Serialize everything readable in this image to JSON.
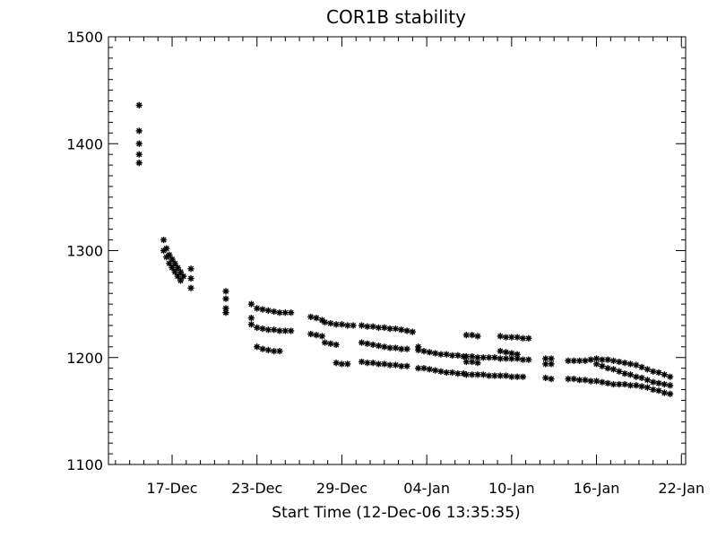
{
  "chart_data": {
    "type": "scatter",
    "title": "COR1B stability",
    "xlabel": "Start Time (12-Dec-06 13:35:35)",
    "ylabel": "",
    "x_unit": "day-of-Dec-2006 (Jan dates = day + 31)",
    "xlim": [
      12.5,
      53.3
    ],
    "ylim": [
      1100,
      1500
    ],
    "x_ticks": [
      {
        "value": 17,
        "label": "17-Dec"
      },
      {
        "value": 23,
        "label": "23-Dec"
      },
      {
        "value": 29,
        "label": "29-Dec"
      },
      {
        "value": 35,
        "label": "04-Jan"
      },
      {
        "value": 41,
        "label": "10-Jan"
      },
      {
        "value": 47,
        "label": "16-Jan"
      },
      {
        "value": 53,
        "label": "22-Jan"
      }
    ],
    "y_ticks": [
      {
        "value": 1100,
        "label": "1100"
      },
      {
        "value": 1200,
        "label": "1200"
      },
      {
        "value": 1300,
        "label": "1300"
      },
      {
        "value": 1400,
        "label": "1400"
      },
      {
        "value": 1500,
        "label": "1500"
      }
    ],
    "grid": false,
    "legend": "none",
    "marker": "asterisk",
    "color": "#000000",
    "series": [
      {
        "points": [
          [
            14.67,
            1436
          ],
          [
            14.67,
            1412
          ],
          [
            14.67,
            1400
          ],
          [
            14.67,
            1390
          ],
          [
            14.67,
            1382
          ],
          [
            16.4,
            1310
          ],
          [
            16.6,
            1302
          ],
          [
            16.8,
            1296
          ],
          [
            17.0,
            1292
          ],
          [
            17.2,
            1288
          ],
          [
            17.4,
            1284
          ],
          [
            17.6,
            1280
          ],
          [
            17.8,
            1276
          ],
          [
            16.4,
            1300
          ],
          [
            16.6,
            1294
          ],
          [
            16.8,
            1288
          ],
          [
            17.0,
            1284
          ],
          [
            17.2,
            1280
          ],
          [
            17.4,
            1276
          ],
          [
            17.6,
            1272
          ],
          [
            18.33,
            1283
          ],
          [
            18.33,
            1274
          ],
          [
            18.33,
            1265
          ],
          [
            20.8,
            1262
          ],
          [
            20.8,
            1255
          ],
          [
            20.8,
            1246
          ],
          [
            20.8,
            1242
          ],
          [
            22.6,
            1250
          ],
          [
            22.6,
            1237
          ],
          [
            22.6,
            1231
          ],
          [
            23.0,
            1246
          ],
          [
            23.4,
            1245
          ],
          [
            23.8,
            1244
          ],
          [
            24.2,
            1243
          ],
          [
            24.6,
            1242
          ],
          [
            25.0,
            1242
          ],
          [
            25.4,
            1242
          ],
          [
            23.0,
            1228
          ],
          [
            23.4,
            1227
          ],
          [
            23.8,
            1226
          ],
          [
            24.2,
            1226
          ],
          [
            24.6,
            1225
          ],
          [
            25.0,
            1225
          ],
          [
            25.4,
            1225
          ],
          [
            23.0,
            1210
          ],
          [
            23.4,
            1208
          ],
          [
            23.8,
            1207
          ],
          [
            24.2,
            1206
          ],
          [
            24.6,
            1206
          ],
          [
            26.8,
            1238
          ],
          [
            27.2,
            1237
          ],
          [
            27.6,
            1235
          ],
          [
            26.8,
            1222
          ],
          [
            27.2,
            1221
          ],
          [
            27.6,
            1220
          ],
          [
            27.8,
            1233
          ],
          [
            28.2,
            1232
          ],
          [
            28.6,
            1231
          ],
          [
            29.0,
            1231
          ],
          [
            29.4,
            1230
          ],
          [
            29.8,
            1230
          ],
          [
            27.8,
            1214
          ],
          [
            28.2,
            1213
          ],
          [
            28.6,
            1212
          ],
          [
            28.6,
            1195
          ],
          [
            29.0,
            1194
          ],
          [
            29.4,
            1194
          ],
          [
            30.4,
            1230
          ],
          [
            30.8,
            1229
          ],
          [
            31.2,
            1229
          ],
          [
            31.6,
            1228
          ],
          [
            32.0,
            1228
          ],
          [
            32.4,
            1227
          ],
          [
            32.8,
            1227
          ],
          [
            33.2,
            1226
          ],
          [
            33.6,
            1225
          ],
          [
            30.4,
            1214
          ],
          [
            30.8,
            1213
          ],
          [
            31.2,
            1212
          ],
          [
            31.6,
            1211
          ],
          [
            32.0,
            1210
          ],
          [
            32.4,
            1209
          ],
          [
            32.8,
            1209
          ],
          [
            33.2,
            1208
          ],
          [
            33.6,
            1208
          ],
          [
            30.4,
            1196
          ],
          [
            30.8,
            1195
          ],
          [
            31.2,
            1195
          ],
          [
            31.6,
            1194
          ],
          [
            32.0,
            1194
          ],
          [
            32.4,
            1193
          ],
          [
            32.8,
            1193
          ],
          [
            33.2,
            1192
          ],
          [
            33.6,
            1192
          ],
          [
            34.0,
            1224
          ],
          [
            34.4,
            1210
          ],
          [
            34.4,
            1207
          ],
          [
            34.8,
            1206
          ],
          [
            35.2,
            1205
          ],
          [
            35.6,
            1204
          ],
          [
            36.0,
            1203
          ],
          [
            36.4,
            1203
          ],
          [
            36.8,
            1202
          ],
          [
            37.2,
            1202
          ],
          [
            37.6,
            1201
          ],
          [
            34.4,
            1190
          ],
          [
            34.8,
            1190
          ],
          [
            35.2,
            1189
          ],
          [
            35.6,
            1188
          ],
          [
            36.0,
            1187
          ],
          [
            36.4,
            1186
          ],
          [
            36.8,
            1186
          ],
          [
            37.2,
            1185
          ],
          [
            37.6,
            1185
          ],
          [
            37.8,
            1221
          ],
          [
            38.2,
            1221
          ],
          [
            38.6,
            1220
          ],
          [
            37.8,
            1201
          ],
          [
            38.2,
            1201
          ],
          [
            38.6,
            1200
          ],
          [
            39.0,
            1200
          ],
          [
            39.4,
            1200
          ],
          [
            39.8,
            1200
          ],
          [
            40.2,
            1199
          ],
          [
            40.6,
            1199
          ],
          [
            41.0,
            1199
          ],
          [
            41.4,
            1199
          ],
          [
            41.8,
            1198
          ],
          [
            42.2,
            1198
          ],
          [
            37.8,
            1184
          ],
          [
            38.2,
            1184
          ],
          [
            38.6,
            1184
          ],
          [
            39.0,
            1184
          ],
          [
            39.4,
            1183
          ],
          [
            39.8,
            1183
          ],
          [
            40.2,
            1183
          ],
          [
            40.6,
            1183
          ],
          [
            41.0,
            1182
          ],
          [
            41.4,
            1182
          ],
          [
            41.8,
            1182
          ],
          [
            37.8,
            1196
          ],
          [
            38.2,
            1196
          ],
          [
            38.6,
            1195
          ],
          [
            40.2,
            1220
          ],
          [
            40.6,
            1219
          ],
          [
            41.0,
            1219
          ],
          [
            41.4,
            1219
          ],
          [
            41.8,
            1218
          ],
          [
            42.2,
            1218
          ],
          [
            40.2,
            1206
          ],
          [
            40.6,
            1205
          ],
          [
            41.0,
            1204
          ],
          [
            41.4,
            1203
          ],
          [
            43.4,
            1199
          ],
          [
            43.8,
            1199
          ],
          [
            43.4,
            1194
          ],
          [
            43.8,
            1194
          ],
          [
            43.4,
            1181
          ],
          [
            43.8,
            1180
          ],
          [
            45.0,
            1197
          ],
          [
            45.4,
            1197
          ],
          [
            45.8,
            1197
          ],
          [
            46.2,
            1197
          ],
          [
            46.6,
            1198
          ],
          [
            47.0,
            1199
          ],
          [
            47.4,
            1198
          ],
          [
            47.8,
            1198
          ],
          [
            48.2,
            1197
          ],
          [
            48.6,
            1196
          ],
          [
            49.0,
            1195
          ],
          [
            49.4,
            1194
          ],
          [
            49.8,
            1193
          ],
          [
            50.2,
            1191
          ],
          [
            50.6,
            1189
          ],
          [
            51.0,
            1187
          ],
          [
            51.4,
            1186
          ],
          [
            51.8,
            1184
          ],
          [
            52.2,
            1182
          ],
          [
            45.0,
            1180
          ],
          [
            45.4,
            1180
          ],
          [
            45.8,
            1179
          ],
          [
            46.2,
            1179
          ],
          [
            46.6,
            1178
          ],
          [
            47.0,
            1178
          ],
          [
            47.4,
            1177
          ],
          [
            47.8,
            1176
          ],
          [
            48.2,
            1175
          ],
          [
            48.6,
            1175
          ],
          [
            49.0,
            1175
          ],
          [
            49.4,
            1174
          ],
          [
            49.8,
            1174
          ],
          [
            50.2,
            1173
          ],
          [
            50.6,
            1172
          ],
          [
            51.0,
            1170
          ],
          [
            51.4,
            1169
          ],
          [
            51.8,
            1167
          ],
          [
            52.2,
            1166
          ],
          [
            47.0,
            1194
          ],
          [
            47.4,
            1192
          ],
          [
            47.8,
            1190
          ],
          [
            48.2,
            1189
          ],
          [
            48.6,
            1187
          ],
          [
            49.0,
            1185
          ],
          [
            49.4,
            1184
          ],
          [
            49.8,
            1182
          ],
          [
            50.2,
            1181
          ],
          [
            50.6,
            1179
          ],
          [
            51.0,
            1177
          ],
          [
            51.4,
            1176
          ],
          [
            51.8,
            1175
          ],
          [
            52.2,
            1174
          ]
        ]
      }
    ]
  }
}
